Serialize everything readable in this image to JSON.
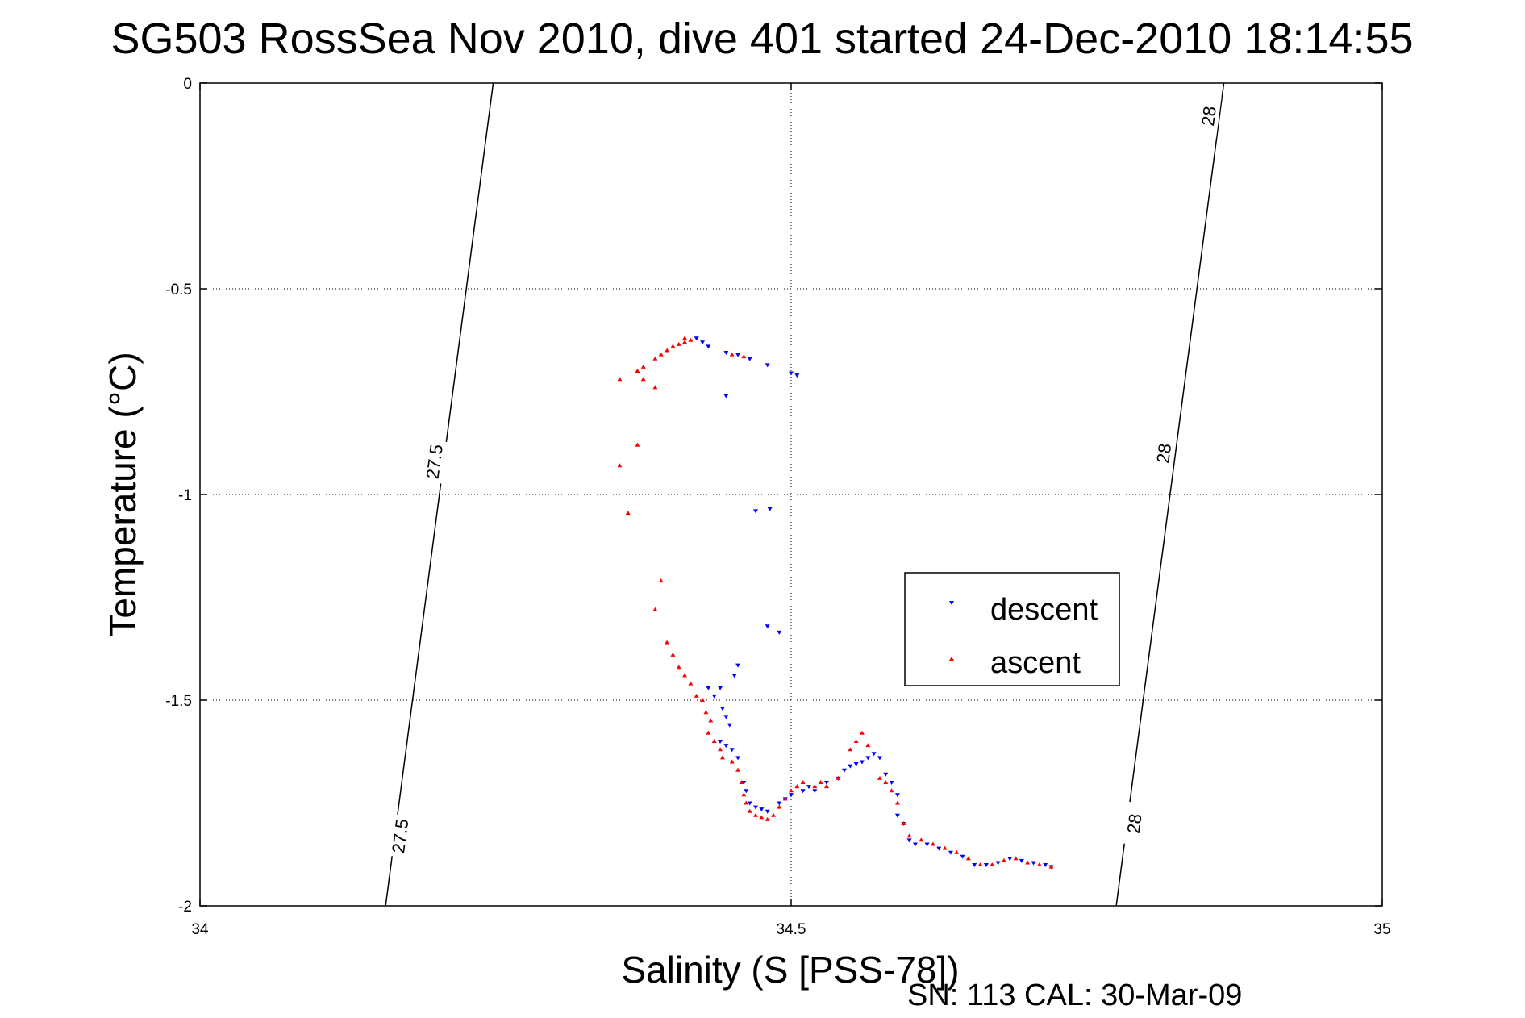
{
  "chart_data": {
    "type": "scatter",
    "title": "SG503 RossSea Nov 2010, dive 401 started 24-Dec-2010 18:14:55",
    "xlabel": "Salinity (S [PSS-78])",
    "ylabel": "Temperature (°C)",
    "xlim": [
      34,
      35
    ],
    "ylim": [
      -2,
      0
    ],
    "xticks": [
      "34",
      "34.5",
      "35"
    ],
    "yticks": [
      "0",
      "-0.5",
      "-1",
      "-1.5",
      "-2"
    ],
    "grid": true,
    "legend_position": "center-right",
    "series": [
      {
        "name": "descent",
        "color": "#0000ff",
        "marker": "down-triangle",
        "points": [
          [
            34.42,
            -0.62
          ],
          [
            34.425,
            -0.63
          ],
          [
            34.43,
            -0.64
          ],
          [
            34.445,
            -0.655
          ],
          [
            34.455,
            -0.66
          ],
          [
            34.465,
            -0.67
          ],
          [
            34.48,
            -0.685
          ],
          [
            34.5,
            -0.705
          ],
          [
            34.505,
            -0.71
          ],
          [
            34.445,
            -0.76
          ],
          [
            34.47,
            -1.04
          ],
          [
            34.482,
            -1.035
          ],
          [
            34.48,
            -1.32
          ],
          [
            34.49,
            -1.335
          ],
          [
            34.455,
            -1.415
          ],
          [
            34.452,
            -1.44
          ],
          [
            34.44,
            -1.47
          ],
          [
            34.43,
            -1.47
          ],
          [
            34.435,
            -1.49
          ],
          [
            34.442,
            -1.52
          ],
          [
            34.445,
            -1.54
          ],
          [
            34.448,
            -1.56
          ],
          [
            34.44,
            -1.6
          ],
          [
            34.445,
            -1.61
          ],
          [
            34.45,
            -1.62
          ],
          [
            34.455,
            -1.64
          ],
          [
            34.46,
            -1.7
          ],
          [
            34.462,
            -1.72
          ],
          [
            34.465,
            -1.75
          ],
          [
            34.47,
            -1.76
          ],
          [
            34.475,
            -1.765
          ],
          [
            34.48,
            -1.77
          ],
          [
            34.49,
            -1.75
          ],
          [
            34.495,
            -1.74
          ],
          [
            34.5,
            -1.73
          ],
          [
            34.51,
            -1.72
          ],
          [
            34.515,
            -1.71
          ],
          [
            34.52,
            -1.72
          ],
          [
            34.53,
            -1.7
          ],
          [
            34.54,
            -1.69
          ],
          [
            34.545,
            -1.67
          ],
          [
            34.55,
            -1.66
          ],
          [
            34.555,
            -1.655
          ],
          [
            34.56,
            -1.65
          ],
          [
            34.565,
            -1.64
          ],
          [
            34.57,
            -1.63
          ],
          [
            34.575,
            -1.64
          ],
          [
            34.58,
            -1.68
          ],
          [
            34.585,
            -1.7
          ],
          [
            34.59,
            -1.73
          ],
          [
            34.59,
            -1.78
          ],
          [
            34.595,
            -1.8
          ],
          [
            34.6,
            -1.84
          ],
          [
            34.605,
            -1.85
          ],
          [
            34.615,
            -1.85
          ],
          [
            34.625,
            -1.86
          ],
          [
            34.635,
            -1.87
          ],
          [
            34.645,
            -1.88
          ],
          [
            34.655,
            -1.9
          ],
          [
            34.665,
            -1.9
          ],
          [
            34.675,
            -1.895
          ],
          [
            34.685,
            -1.885
          ],
          [
            34.695,
            -1.89
          ],
          [
            34.705,
            -1.895
          ],
          [
            34.715,
            -1.9
          ],
          [
            34.72,
            -1.905
          ]
        ]
      },
      {
        "name": "ascent",
        "color": "#ff0000",
        "marker": "up-triangle",
        "points": [
          [
            34.355,
            -0.72
          ],
          [
            34.37,
            -0.7
          ],
          [
            34.375,
            -0.69
          ],
          [
            34.385,
            -0.67
          ],
          [
            34.39,
            -0.66
          ],
          [
            34.395,
            -0.65
          ],
          [
            34.4,
            -0.64
          ],
          [
            34.405,
            -0.635
          ],
          [
            34.41,
            -0.63
          ],
          [
            34.41,
            -0.62
          ],
          [
            34.415,
            -0.625
          ],
          [
            34.45,
            -0.66
          ],
          [
            34.46,
            -0.665
          ],
          [
            34.375,
            -0.72
          ],
          [
            34.385,
            -0.74
          ],
          [
            34.37,
            -0.88
          ],
          [
            34.355,
            -0.93
          ],
          [
            34.362,
            -1.045
          ],
          [
            34.39,
            -1.21
          ],
          [
            34.385,
            -1.28
          ],
          [
            34.395,
            -1.36
          ],
          [
            34.4,
            -1.39
          ],
          [
            34.405,
            -1.42
          ],
          [
            34.41,
            -1.44
          ],
          [
            34.415,
            -1.46
          ],
          [
            34.42,
            -1.49
          ],
          [
            34.425,
            -1.5
          ],
          [
            34.428,
            -1.53
          ],
          [
            34.432,
            -1.55
          ],
          [
            34.43,
            -1.58
          ],
          [
            34.435,
            -1.6
          ],
          [
            34.44,
            -1.62
          ],
          [
            34.442,
            -1.64
          ],
          [
            34.45,
            -1.65
          ],
          [
            34.455,
            -1.67
          ],
          [
            34.458,
            -1.7
          ],
          [
            34.46,
            -1.73
          ],
          [
            34.462,
            -1.75
          ],
          [
            34.465,
            -1.77
          ],
          [
            34.47,
            -1.78
          ],
          [
            34.475,
            -1.785
          ],
          [
            34.48,
            -1.79
          ],
          [
            34.485,
            -1.78
          ],
          [
            34.49,
            -1.76
          ],
          [
            34.495,
            -1.74
          ],
          [
            34.5,
            -1.72
          ],
          [
            34.505,
            -1.71
          ],
          [
            34.51,
            -1.7
          ],
          [
            34.52,
            -1.71
          ],
          [
            34.525,
            -1.7
          ],
          [
            34.53,
            -1.71
          ],
          [
            34.54,
            -1.69
          ],
          [
            34.55,
            -1.62
          ],
          [
            34.555,
            -1.6
          ],
          [
            34.56,
            -1.58
          ],
          [
            34.565,
            -1.61
          ],
          [
            34.575,
            -1.69
          ],
          [
            34.58,
            -1.7
          ],
          [
            34.585,
            -1.72
          ],
          [
            34.59,
            -1.75
          ],
          [
            34.595,
            -1.8
          ],
          [
            34.6,
            -1.83
          ],
          [
            34.61,
            -1.84
          ],
          [
            34.62,
            -1.85
          ],
          [
            34.63,
            -1.86
          ],
          [
            34.64,
            -1.87
          ],
          [
            34.65,
            -1.885
          ],
          [
            34.66,
            -1.9
          ],
          [
            34.67,
            -1.9
          ],
          [
            34.68,
            -1.89
          ],
          [
            34.69,
            -1.885
          ],
          [
            34.7,
            -1.895
          ],
          [
            34.71,
            -1.9
          ],
          [
            34.72,
            -1.905
          ]
        ]
      }
    ],
    "contours": [
      {
        "label": "27.5",
        "x_at_top": 34.248,
        "x_at_bottom": 34.157,
        "label_points": [
          [
            34.198,
            -0.92
          ],
          [
            34.169,
            -1.83
          ]
        ]
      },
      {
        "label": "28",
        "x_at_top": 34.866,
        "x_at_bottom": 34.775,
        "label_points": [
          [
            34.853,
            -0.08
          ],
          [
            34.815,
            -0.9
          ],
          [
            34.79,
            -1.8
          ]
        ]
      }
    ],
    "legend_entries": [
      "descent",
      "ascent"
    ],
    "footer": "SN: 113  CAL: 30-Mar-09"
  }
}
